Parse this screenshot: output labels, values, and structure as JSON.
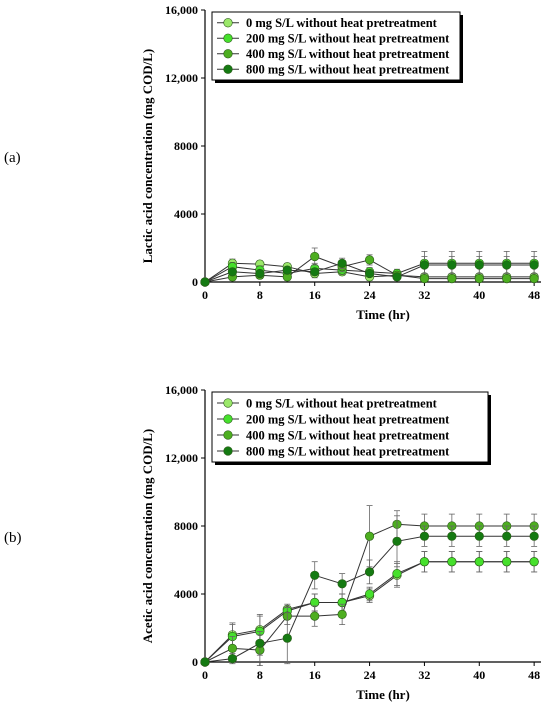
{
  "figure": {
    "panels": [
      {
        "label": "(a)"
      },
      {
        "label": "(b)"
      }
    ]
  },
  "series_style": [
    {
      "name": "0 mg S/L without heat pretreatment",
      "color": "#9be86a"
    },
    {
      "name": "200 mg S/L without heat pretreatment",
      "color": "#46e02c"
    },
    {
      "name": "400 mg S/L without heat pretreatment",
      "color": "#4dae20"
    },
    {
      "name": "800 mg S/L without heat pretreatment",
      "color": "#157a12"
    }
  ],
  "chart_data": [
    {
      "type": "line",
      "panel": "(a)",
      "xlabel": "Time (hr)",
      "ylabel": "Lactic acid concentration (mg COD/L)",
      "xlim": [
        0,
        49
      ],
      "ylim": [
        0,
        16000
      ],
      "xticks": [
        0,
        8,
        16,
        24,
        32,
        40,
        48
      ],
      "yticks": [
        0,
        4000,
        8000,
        12000,
        16000
      ],
      "ytick_labels": [
        "0",
        "4000",
        "8000",
        "12,000",
        "16,000"
      ],
      "legend_position": "top-right",
      "x": [
        0,
        4,
        8,
        12,
        16,
        20,
        24,
        28,
        32,
        36,
        40,
        44,
        48
      ],
      "series": [
        {
          "name": "0 mg S/L without heat pretreatment",
          "values": [
            0,
            1100,
            1050,
            900,
            500,
            600,
            300,
            400,
            300,
            300,
            300,
            300,
            300
          ],
          "errors": [
            0,
            250,
            200,
            200,
            250,
            200,
            200,
            150,
            150,
            150,
            150,
            150,
            150
          ]
        },
        {
          "name": "200 mg S/L without heat pretreatment",
          "values": [
            0,
            900,
            700,
            500,
            800,
            700,
            600,
            500,
            1100,
            1100,
            1100,
            1100,
            1100
          ],
          "errors": [
            0,
            250,
            250,
            250,
            300,
            250,
            250,
            250,
            700,
            700,
            700,
            700,
            700
          ]
        },
        {
          "name": "400 mg S/L without heat pretreatment",
          "values": [
            0,
            300,
            400,
            300,
            1500,
            900,
            1300,
            400,
            200,
            200,
            200,
            200,
            200
          ],
          "errors": [
            0,
            200,
            200,
            200,
            500,
            300,
            300,
            200,
            100,
            100,
            100,
            100,
            100
          ]
        },
        {
          "name": "800 mg S/L without heat pretreatment",
          "values": [
            0,
            600,
            500,
            700,
            600,
            1100,
            500,
            300,
            1000,
            1000,
            1000,
            1000,
            1000
          ],
          "errors": [
            0,
            200,
            200,
            200,
            200,
            300,
            200,
            200,
            500,
            500,
            500,
            500,
            500
          ]
        }
      ]
    },
    {
      "type": "line",
      "panel": "(b)",
      "xlabel": "Time (hr)",
      "ylabel": "Acetic acid concentration (mg COD/L)",
      "xlim": [
        0,
        49
      ],
      "ylim": [
        0,
        16000
      ],
      "xticks": [
        0,
        8,
        16,
        24,
        32,
        40,
        48
      ],
      "yticks": [
        0,
        4000,
        8000,
        12000,
        16000
      ],
      "ytick_labels": [
        "0",
        "4000",
        "8000",
        "12,000",
        "16,000"
      ],
      "legend_position": "top-right",
      "x": [
        0,
        4,
        8,
        12,
        16,
        20,
        24,
        28,
        32,
        36,
        40,
        44,
        48
      ],
      "series": [
        {
          "name": "0 mg S/L without heat pretreatment",
          "values": [
            0,
            1600,
            1900,
            3100,
            3500,
            3500,
            3900,
            5100,
            5900,
            5900,
            5900,
            5900,
            5900
          ],
          "errors": [
            0,
            700,
            900,
            300,
            500,
            500,
            400,
            700,
            600,
            600,
            600,
            600,
            600
          ]
        },
        {
          "name": "200 mg S/L without heat pretreatment",
          "values": [
            0,
            1500,
            1800,
            3000,
            3500,
            3500,
            4000,
            5200,
            5900,
            5900,
            5900,
            5900,
            5900
          ],
          "errors": [
            0,
            700,
            900,
            300,
            500,
            500,
            400,
            700,
            600,
            600,
            600,
            600,
            600
          ]
        },
        {
          "name": "400 mg S/L without heat pretreatment",
          "values": [
            0,
            800,
            700,
            2700,
            2700,
            2800,
            7400,
            8100,
            8000,
            8000,
            8000,
            8000,
            8000
          ],
          "errors": [
            0,
            700,
            900,
            500,
            600,
            600,
            1800,
            800,
            700,
            700,
            700,
            700,
            700
          ]
        },
        {
          "name": "800 mg S/L without heat pretreatment",
          "values": [
            0,
            200,
            1100,
            1400,
            5100,
            4600,
            5300,
            7100,
            7400,
            7400,
            7400,
            7400,
            7400
          ],
          "errors": [
            0,
            300,
            700,
            1500,
            800,
            600,
            700,
            1500,
            600,
            600,
            600,
            600,
            600
          ]
        }
      ]
    }
  ]
}
